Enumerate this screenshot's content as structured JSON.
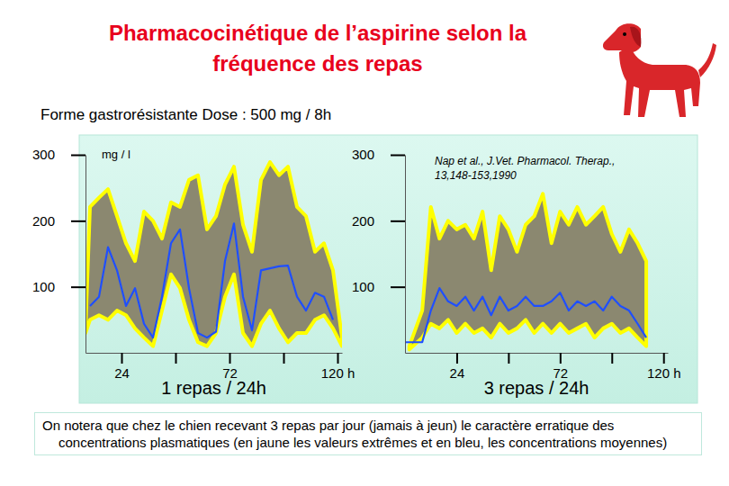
{
  "title": "Pharmacocinétique de l’aspirine selon la fréquence des repas",
  "subtitle": "Forme gastrorésistante Dose : 500 mg / 8h",
  "reference": "Nap et al., J.Vet. Pharmacol. Therap., 13,148-153,1990",
  "note": "On notera que chez le chien recevant 3 repas par jour (jamais à jeun) le caractère erratique des concentrations plasmatiques (en jaune les valeurs extrêmes et en bleu, les concentrations moyennes)",
  "chart_data": [
    {
      "type": "area",
      "xlabel": "1 repas / 24h",
      "ylabel": "mg / l",
      "xlim": [
        8,
        122
      ],
      "ylim": [
        0,
        300
      ],
      "xticks": [
        24,
        {
          "value": 48,
          "label": null
        },
        72,
        {
          "value": 96,
          "label": null
        },
        {
          "value": 120,
          "label": "120 h"
        }
      ],
      "yticks": [
        100,
        200,
        300
      ],
      "grid": false,
      "series": [
        {
          "type": "range",
          "color": "#8b8870",
          "x": [
            8,
            10,
            14,
            18,
            22,
            26,
            30,
            34,
            38,
            42,
            46,
            50,
            54,
            58,
            62,
            66,
            70,
            74,
            78,
            82,
            86,
            90,
            94,
            98,
            102,
            106,
            110,
            114,
            118,
            122
          ],
          "values": [
            37,
            221,
            235,
            248,
            207,
            166,
            139,
            214,
            200,
            173,
            228,
            221,
            262,
            269,
            187,
            207,
            255,
            282,
            194,
            153,
            262,
            289,
            269,
            282,
            221,
            207,
            153,
            166,
            125,
            23
          ],
          "lower": [
            30,
            50,
            57,
            50,
            64,
            57,
            37,
            23,
            10,
            64,
            119,
            98,
            50,
            16,
            10,
            30,
            85,
            119,
            30,
            10,
            44,
            64,
            37,
            16,
            30,
            30,
            50,
            57,
            37,
            10
          ]
        },
        {
          "type": "line",
          "color": "#1f4fff",
          "x": [
            8,
            10,
            14,
            18,
            22,
            26,
            30,
            34,
            38,
            42,
            46,
            50,
            54,
            58,
            62,
            66,
            70,
            74,
            78,
            82,
            86,
            90,
            94,
            98,
            102,
            106,
            110,
            114,
            118,
            122
          ],
          "values": [
            null,
            71,
            85,
            160,
            125,
            71,
            98,
            44,
            23,
            85,
            166,
            187,
            98,
            30,
            23,
            32,
            139,
            196,
            85,
            34,
            125,
            128,
            131,
            132,
            85,
            64,
            91,
            85,
            50,
            null
          ]
        }
      ]
    },
    {
      "type": "area",
      "xlabel": "3 repas / 24h",
      "xlim": [
        0,
        122
      ],
      "ylim": [
        0,
        300
      ],
      "xticks": [
        24,
        {
          "value": 48,
          "label": null
        },
        72,
        {
          "value": 96,
          "label": null
        },
        {
          "value": 120,
          "label": "120 h"
        }
      ],
      "yticks": [
        100,
        200,
        300
      ],
      "grid": false,
      "series": [
        {
          "type": "range",
          "color": "#8b8870",
          "x": [
            2,
            8,
            12,
            16,
            20,
            24,
            28,
            32,
            36,
            40,
            44,
            48,
            52,
            56,
            60,
            64,
            68,
            72,
            76,
            80,
            84,
            88,
            92,
            96,
            100,
            104,
            108,
            112
          ],
          "values": [
            10,
            64,
            221,
            173,
            200,
            187,
            194,
            173,
            214,
            125,
            207,
            187,
            153,
            194,
            207,
            241,
            166,
            214,
            194,
            221,
            194,
            207,
            221,
            180,
            153,
            187,
            166,
            139
          ],
          "lower": [
            5,
            23,
            44,
            37,
            50,
            30,
            44,
            30,
            37,
            23,
            44,
            30,
            37,
            50,
            30,
            44,
            30,
            44,
            30,
            37,
            44,
            23,
            37,
            44,
            30,
            37,
            23,
            10
          ]
        },
        {
          "type": "line",
          "color": "#1f4fff",
          "x": [
            0,
            8,
            12,
            16,
            20,
            24,
            28,
            32,
            36,
            40,
            44,
            48,
            52,
            56,
            60,
            64,
            68,
            72,
            76,
            80,
            84,
            88,
            92,
            96,
            100,
            104,
            108,
            112
          ],
          "values": [
            16,
            16,
            64,
            98,
            78,
            71,
            85,
            64,
            85,
            57,
            85,
            64,
            71,
            85,
            71,
            71,
            78,
            91,
            64,
            78,
            71,
            78,
            64,
            85,
            71,
            64,
            44,
            23
          ]
        }
      ]
    }
  ]
}
